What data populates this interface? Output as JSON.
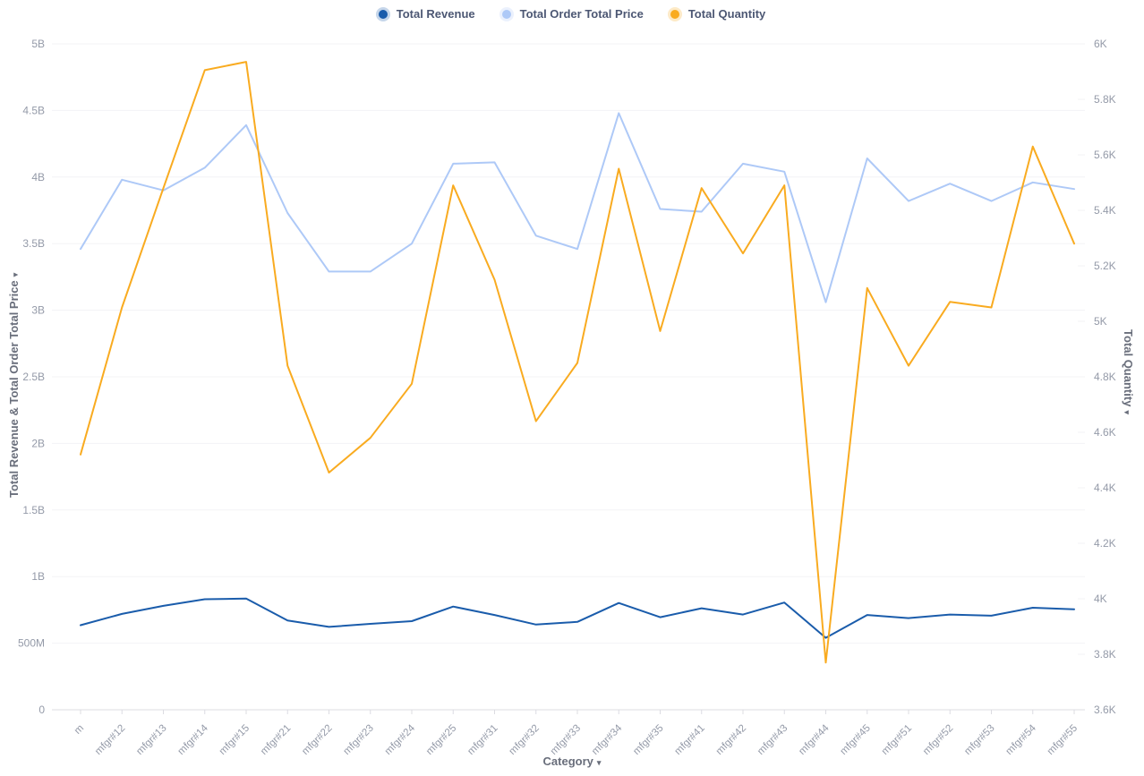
{
  "legend": {
    "items": [
      {
        "label": "Total Revenue",
        "color": "#1a5cab"
      },
      {
        "label": "Total Order Total Price",
        "color": "#aec9f7"
      },
      {
        "label": "Total Quantity",
        "color": "#f9ab20"
      }
    ]
  },
  "axes": {
    "left": {
      "title": "Total Revenue & Total Order Total Price",
      "sort_arrow": "▾",
      "ticks": [
        "0",
        "500M",
        "1B",
        "1.5B",
        "2B",
        "2.5B",
        "3B",
        "3.5B",
        "4B",
        "4.5B",
        "5B"
      ]
    },
    "right": {
      "title": "Total Quantity",
      "sort_arrow": "▾",
      "ticks": [
        "3.6K",
        "3.8K",
        "4K",
        "4.2K",
        "4.4K",
        "4.6K",
        "4.8K",
        "5K",
        "5.2K",
        "5.4K",
        "5.6K",
        "5.8K",
        "6K"
      ]
    },
    "x": {
      "title": "Category",
      "sort_arrow": "▾"
    }
  },
  "chart_data": {
    "type": "line",
    "categories": [
      "m",
      "mfgr#12",
      "mfgr#13",
      "mfgr#14",
      "mfgr#15",
      "mfgr#21",
      "mfgr#22",
      "mfgr#23",
      "mfgr#24",
      "mfgr#25",
      "mfgr#31",
      "mfgr#32",
      "mfgr#33",
      "mfgr#34",
      "mfgr#35",
      "mfgr#41",
      "mfgr#42",
      "mfgr#43",
      "mfgr#44",
      "mfgr#45",
      "mfgr#51",
      "mfgr#52",
      "mfgr#53",
      "mfgr#54",
      "mfgr#55"
    ],
    "xlabel": "Category",
    "left_ylabel": "Total Revenue & Total Order Total Price",
    "right_ylabel": "Total Quantity",
    "left_ylim": [
      0,
      5000000000
    ],
    "right_ylim": [
      3600,
      6000
    ],
    "grid": true,
    "legend_position": "top",
    "series": [
      {
        "name": "Total Revenue",
        "axis": "left",
        "color": "#1a5cab",
        "values": [
          635000000,
          720000000,
          780000000,
          830000000,
          835000000,
          670000000,
          622000000,
          645000000,
          665000000,
          775000000,
          712000000,
          640000000,
          660000000,
          802000000,
          695000000,
          762000000,
          715000000,
          805000000,
          540000000,
          712000000,
          688000000,
          715000000,
          706000000,
          766000000,
          755000000
        ]
      },
      {
        "name": "Total Order Total Price",
        "axis": "left",
        "color": "#aec9f7",
        "values": [
          3460000000,
          3980000000,
          3900000000,
          4070000000,
          4390000000,
          3730000000,
          3290000000,
          3290000000,
          3500000000,
          4100000000,
          4110000000,
          3560000000,
          3460000000,
          4480000000,
          3760000000,
          3740000000,
          4100000000,
          4040000000,
          3060000000,
          4140000000,
          3820000000,
          3950000000,
          3820000000,
          3960000000,
          3910000000
        ]
      },
      {
        "name": "Total Quantity",
        "axis": "right",
        "color": "#f9ab20",
        "values": [
          4520,
          5050,
          5480,
          5905,
          5935,
          4840,
          4455,
          4580,
          4775,
          5490,
          5150,
          4640,
          4850,
          5550,
          4965,
          5480,
          5245,
          5490,
          3770,
          5120,
          4840,
          5070,
          5050,
          5630,
          5280
        ]
      }
    ]
  },
  "colors": {
    "background": "#ffffff",
    "gridline": "#f3f3f6",
    "axis_line": "#dcdce2",
    "tick_text": "#949aa8",
    "axis_title_text": "#696e7b",
    "legend_text": "#4c5773"
  }
}
